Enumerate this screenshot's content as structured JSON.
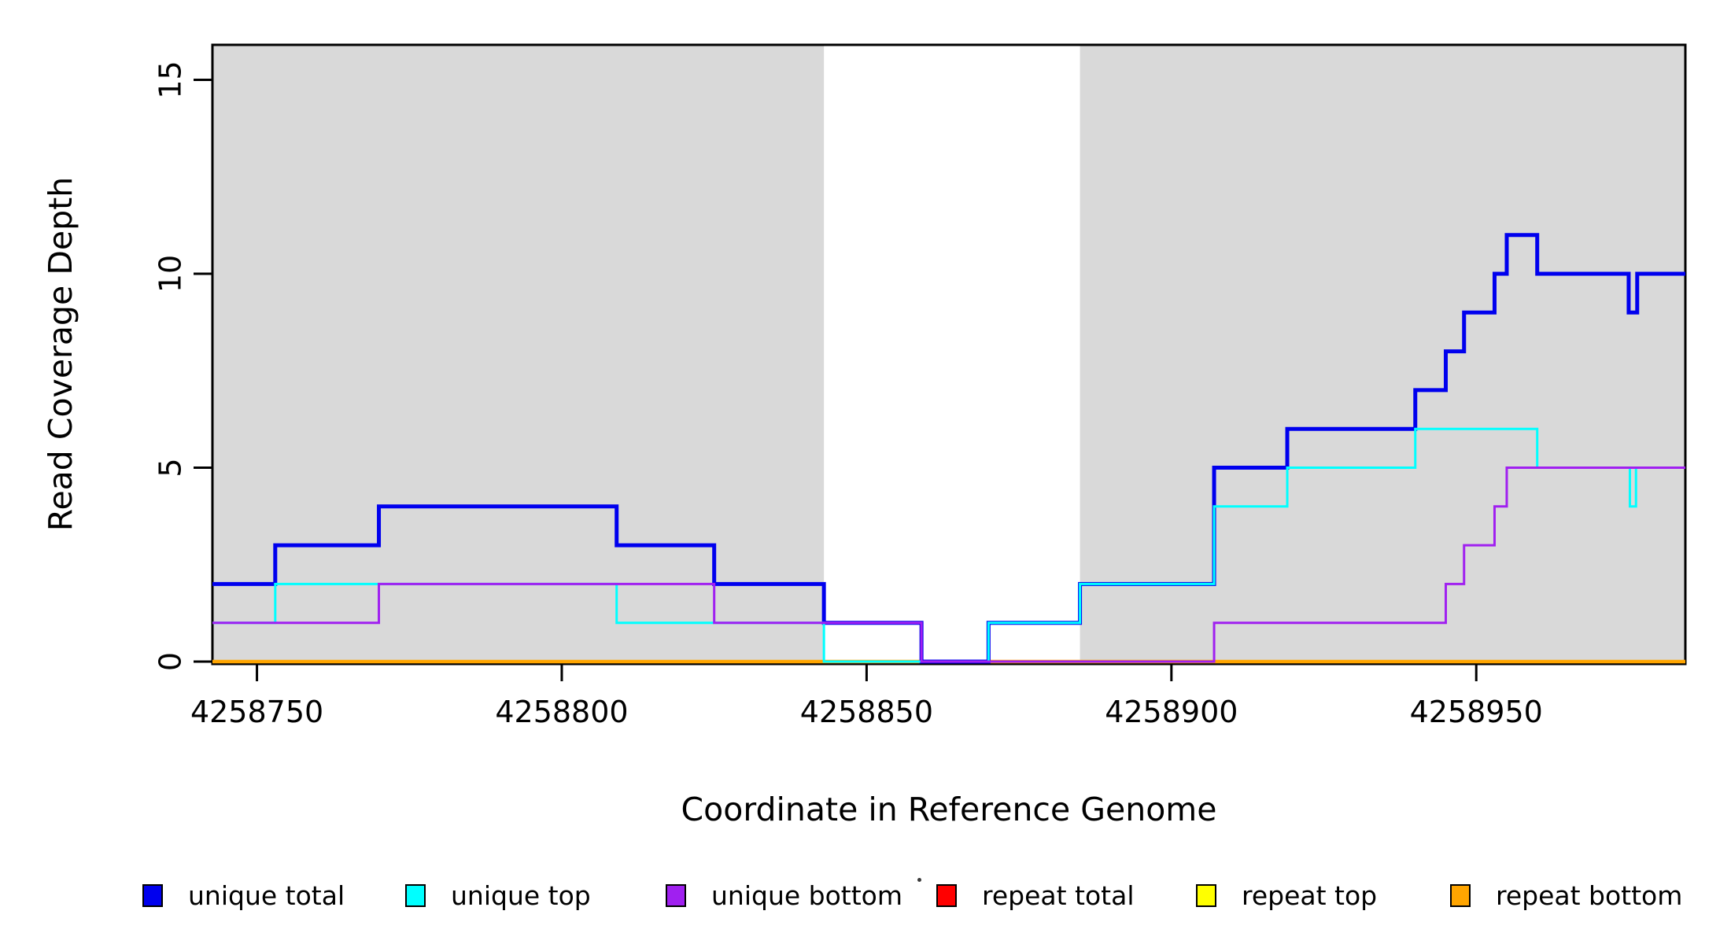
{
  "chart_data": {
    "type": "line",
    "step": true,
    "title": "",
    "xlabel": "Coordinate in Reference Genome",
    "ylabel": "Read Coverage Depth",
    "xlim": [
      4258742.7,
      4258984.3
    ],
    "ylim": [
      0,
      15.9
    ],
    "x_ticks": [
      4258750,
      4258800,
      4258850,
      4258900,
      4258950
    ],
    "y_ticks": [
      0,
      5,
      10,
      15
    ],
    "grid": false,
    "legend_position": "bottom",
    "axis_color": "#000000",
    "background_color": "#FFFFFF",
    "shaded_band_color": "#D9D9D9",
    "shaded_regions": [
      {
        "x0": 4258742.7,
        "x1": 4258843
      },
      {
        "x0": 4258885,
        "x1": 4258984.3
      }
    ],
    "series": [
      {
        "id": "unique-total",
        "name": "unique total",
        "color": "#0000EE",
        "width": 5,
        "points": [
          [
            4258742.7,
            2
          ],
          [
            4258753,
            3
          ],
          [
            4258770,
            4
          ],
          [
            4258809,
            3
          ],
          [
            4258825,
            2
          ],
          [
            4258843,
            1
          ],
          [
            4258859,
            0
          ],
          [
            4258870,
            1
          ],
          [
            4258885,
            2
          ],
          [
            4258907,
            5
          ],
          [
            4258919,
            6
          ],
          [
            4258940,
            7
          ],
          [
            4258945,
            8
          ],
          [
            4258948,
            9
          ],
          [
            4258953,
            10
          ],
          [
            4258955,
            11
          ],
          [
            4258960,
            10
          ],
          [
            4258975,
            9
          ],
          [
            4258976.4,
            10
          ]
        ]
      },
      {
        "id": "unique-top",
        "name": "unique top",
        "color": "#00FFFF",
        "width": 3,
        "points": [
          [
            4258742.7,
            1
          ],
          [
            4258753,
            2
          ],
          [
            4258809,
            1
          ],
          [
            4258843,
            0
          ],
          [
            4258870,
            1
          ],
          [
            4258885,
            2
          ],
          [
            4258907,
            4
          ],
          [
            4258919,
            5
          ],
          [
            4258940,
            6
          ],
          [
            4258960,
            5
          ],
          [
            4258975.2,
            4
          ],
          [
            4258976.2,
            5
          ]
        ]
      },
      {
        "id": "unique-bottom",
        "name": "unique bottom",
        "color": "#A020F0",
        "width": 3,
        "points": [
          [
            4258742.7,
            1
          ],
          [
            4258770,
            2
          ],
          [
            4258825,
            1
          ],
          [
            4258859,
            0
          ],
          [
            4258907,
            1
          ],
          [
            4258945,
            2
          ],
          [
            4258948,
            3
          ],
          [
            4258953,
            4
          ],
          [
            4258955,
            5
          ]
        ]
      },
      {
        "id": "repeat-total",
        "name": "repeat total",
        "color": "#FF0000",
        "width": 2.5,
        "points": [
          [
            4258742.7,
            0
          ]
        ]
      },
      {
        "id": "repeat-top",
        "name": "repeat top",
        "color": "#FFFF00",
        "width": 2.5,
        "points": [
          [
            4258742.7,
            0
          ]
        ]
      },
      {
        "id": "repeat-bottom",
        "name": "repeat bottom",
        "color": "#FFA500",
        "width": 4.5,
        "points": [
          [
            4258742.7,
            0
          ]
        ]
      }
    ],
    "legend": [
      {
        "label": "unique total",
        "color": "#0000EE"
      },
      {
        "label": "unique top",
        "color": "#00FFFF"
      },
      {
        "label": "unique bottom",
        "color": "#A020F0"
      },
      {
        "label": "repeat total",
        "color": "#FF0000"
      },
      {
        "label": "repeat top",
        "color": "#FFFF00"
      },
      {
        "label": "repeat bottom",
        "color": "#FFA500"
      }
    ]
  }
}
